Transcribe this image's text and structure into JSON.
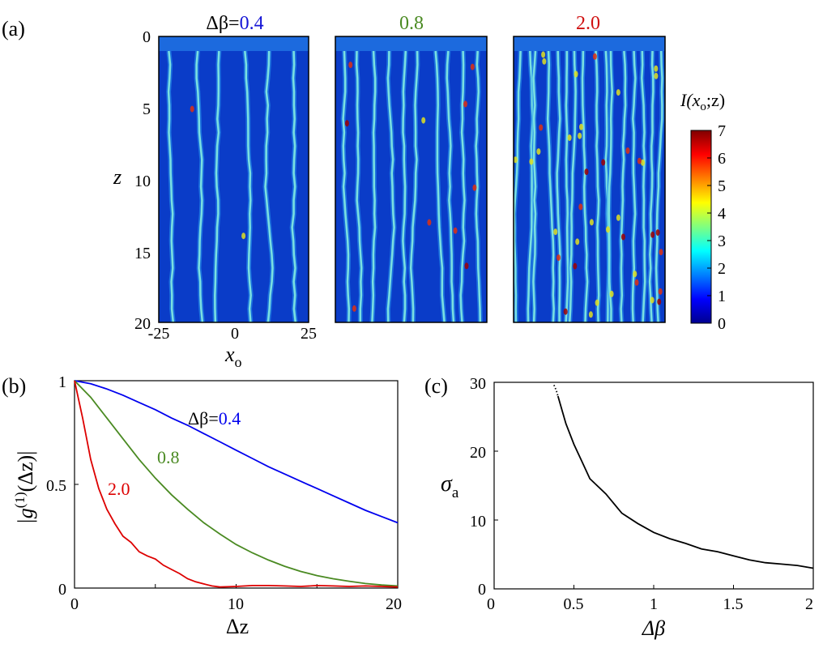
{
  "figure": {
    "panel_labels": [
      "(a)",
      "(b)",
      "(c)"
    ]
  },
  "chart_data": [
    {
      "id": "a",
      "type": "heatmap",
      "panel_label": "(a)",
      "panels": [
        {
          "title_prefix": "Δβ=",
          "title_value": "0.4",
          "title_color": "#1515d6",
          "delta_beta": 0.4
        },
        {
          "title_prefix": "",
          "title_value": "0.8",
          "title_color": "#4a8a22",
          "delta_beta": 0.8
        },
        {
          "title_prefix": "",
          "title_value": "2.0",
          "title_color": "#d01010",
          "delta_beta": 2.0
        }
      ],
      "xlabel": "x",
      "xlabel_sub": "o",
      "ylabel": "z",
      "xlim": [
        -25,
        25
      ],
      "ylim": [
        0,
        20
      ],
      "x_ticks": [
        "-25",
        "0",
        "25"
      ],
      "y_ticks": [
        "0",
        "5",
        "10",
        "15",
        "20"
      ],
      "colorbar": {
        "label_main": "I(x",
        "label_sub": "o",
        "label_end": ";z)",
        "range": [
          0,
          7
        ],
        "ticks": [
          "0",
          "1",
          "2",
          "3",
          "4",
          "5",
          "6",
          "7"
        ],
        "colormap": "jet"
      }
    },
    {
      "id": "b",
      "type": "line",
      "panel_label": "(b)",
      "xlabel": "Δz",
      "ylabel_main": "|g",
      "ylabel_sup": "(1)",
      "ylabel_end": "(Δz)|",
      "xlim": [
        0,
        20
      ],
      "ylim": [
        0,
        1
      ],
      "x_ticks": [
        "0",
        "10",
        "20"
      ],
      "y_ticks": [
        "0",
        "0.5",
        "1"
      ],
      "series": [
        {
          "label_prefix": "Δβ=",
          "label_value": "0.4",
          "color": "#0000ee",
          "x": [
            0,
            1,
            2,
            3,
            4,
            5,
            6,
            7,
            8,
            9,
            10,
            11,
            12,
            13,
            14,
            15,
            16,
            17,
            18,
            19,
            20
          ],
          "y": [
            1.0,
            0.985,
            0.96,
            0.93,
            0.895,
            0.86,
            0.82,
            0.785,
            0.745,
            0.705,
            0.665,
            0.625,
            0.585,
            0.55,
            0.515,
            0.48,
            0.445,
            0.41,
            0.375,
            0.345,
            0.315
          ]
        },
        {
          "label_prefix": "",
          "label_value": "0.8",
          "color": "#4a8a22",
          "x": [
            0,
            1,
            2,
            3,
            4,
            5,
            6,
            7,
            8,
            9,
            10,
            11,
            12,
            13,
            14,
            15,
            16,
            17,
            18,
            19,
            20
          ],
          "y": [
            1.0,
            0.92,
            0.82,
            0.72,
            0.62,
            0.53,
            0.45,
            0.38,
            0.315,
            0.26,
            0.21,
            0.17,
            0.135,
            0.105,
            0.08,
            0.06,
            0.045,
            0.033,
            0.022,
            0.015,
            0.01
          ]
        },
        {
          "label_prefix": "",
          "label_value": "2.0",
          "color": "#dd0000",
          "x": [
            0,
            0.5,
            1,
            1.5,
            2,
            2.5,
            3,
            3.5,
            4,
            4.5,
            5,
            5.5,
            6,
            6.5,
            7,
            7.5,
            8,
            8.5,
            9,
            10,
            11,
            12,
            13,
            14,
            15,
            16,
            17,
            18,
            19,
            20
          ],
          "y": [
            1.0,
            0.82,
            0.62,
            0.48,
            0.38,
            0.31,
            0.25,
            0.22,
            0.175,
            0.155,
            0.14,
            0.11,
            0.09,
            0.07,
            0.045,
            0.03,
            0.02,
            0.01,
            0.005,
            0.008,
            0.012,
            0.012,
            0.01,
            0.008,
            0.012,
            0.01,
            0.008,
            0.01,
            0.008,
            0.005
          ]
        }
      ]
    },
    {
      "id": "c",
      "type": "line",
      "panel_label": "(c)",
      "xlabel": "Δβ",
      "ylabel_main": "σ",
      "ylabel_sub": "a",
      "xlim": [
        0,
        2
      ],
      "ylim": [
        0,
        30
      ],
      "x_ticks": [
        "0",
        "0.5",
        "1",
        "1.5",
        "2"
      ],
      "y_ticks": [
        "0",
        "10",
        "20",
        "30"
      ],
      "series": [
        {
          "style": "dotted",
          "color": "#000000",
          "x": [
            0.375,
            0.39,
            0.4
          ],
          "y": [
            29.6,
            28.8,
            28.0
          ]
        },
        {
          "style": "solid",
          "color": "#000000",
          "x": [
            0.4,
            0.45,
            0.5,
            0.55,
            0.6,
            0.7,
            0.8,
            0.9,
            1.0,
            1.1,
            1.2,
            1.3,
            1.4,
            1.5,
            1.6,
            1.7,
            1.8,
            1.9,
            2.0
          ],
          "y": [
            28.0,
            24.0,
            21.0,
            18.5,
            16.0,
            13.8,
            11.0,
            9.5,
            8.2,
            7.3,
            6.6,
            5.8,
            5.4,
            4.8,
            4.2,
            3.8,
            3.6,
            3.4,
            3.0
          ]
        }
      ]
    }
  ]
}
